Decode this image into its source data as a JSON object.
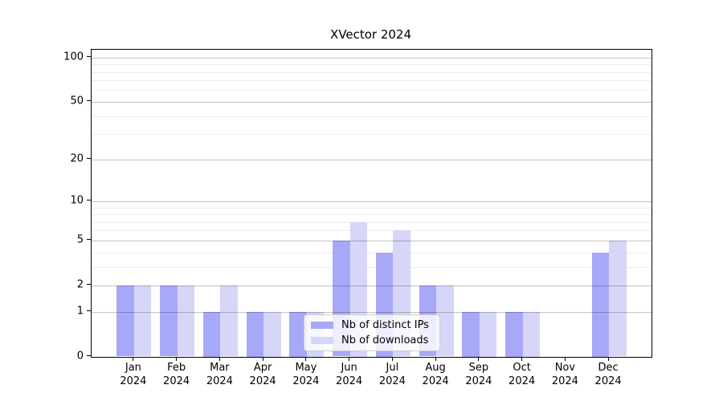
{
  "chart_data": {
    "type": "bar",
    "title": "XVector 2024",
    "categories": [
      "Jan",
      "Feb",
      "Mar",
      "Apr",
      "May",
      "Jun",
      "Jul",
      "Aug",
      "Sep",
      "Oct",
      "Nov",
      "Dec"
    ],
    "category_year": "2024",
    "series": [
      {
        "name": "Nb of distinct IPs",
        "color": "#a8a8f8",
        "values": [
          2,
          2,
          1,
          1,
          1,
          5,
          4,
          2,
          1,
          1,
          0,
          4
        ]
      },
      {
        "name": "Nb of downloads",
        "color": "#d6d6f8",
        "values": [
          2,
          2,
          2,
          1,
          1,
          7,
          6,
          2,
          1,
          1,
          0,
          5
        ]
      }
    ],
    "yscale": "log1p",
    "ylim": [
      0,
      113
    ],
    "y_tick_labels": [
      "100",
      "50",
      "20",
      "10",
      "5",
      "2",
      "1",
      "0"
    ],
    "y_tick_values": [
      100,
      50,
      20,
      10,
      5,
      2,
      1,
      0
    ],
    "y_minor_gridlines": [
      3,
      4,
      6,
      7,
      8,
      9,
      30,
      40,
      60,
      70,
      80,
      90
    ],
    "grid": "on",
    "legend_position": "lower center",
    "xlabel": "",
    "ylabel": ""
  },
  "colors": {
    "axis": "#000000",
    "legend_border": "#cccccc",
    "bar_ips": "#a8a8f8",
    "bar_downloads": "#d6d6f8"
  }
}
